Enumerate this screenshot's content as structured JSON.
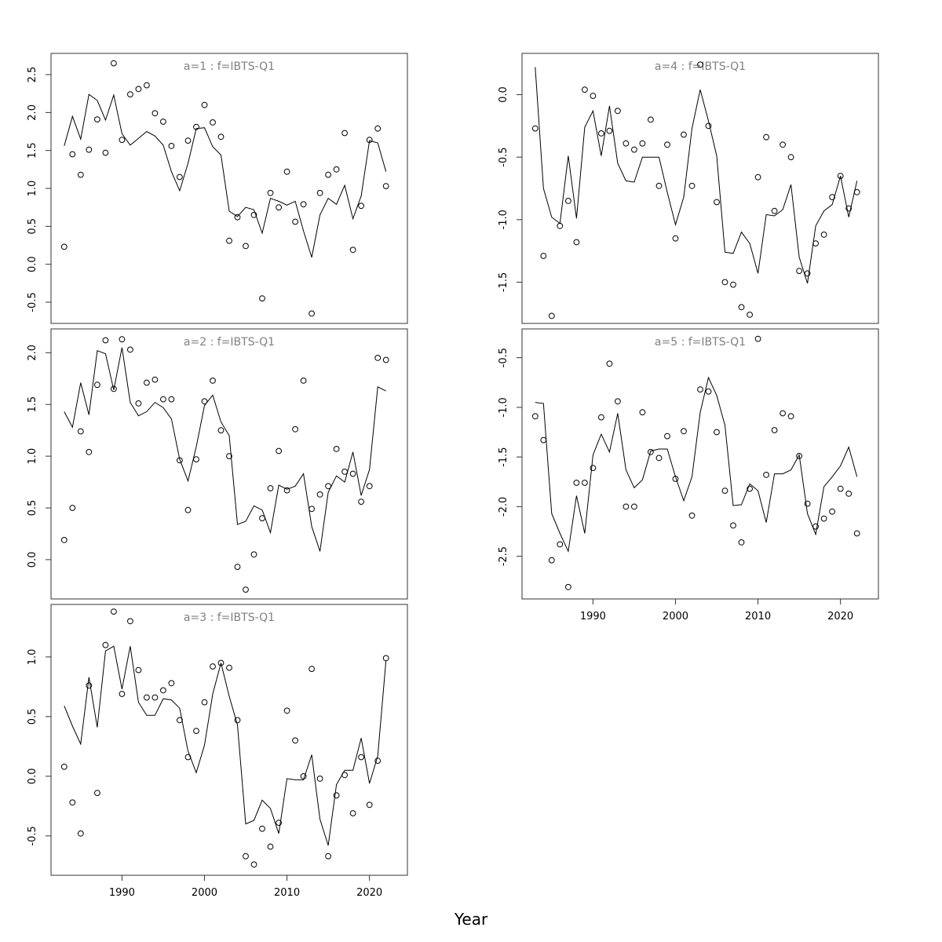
{
  "figure": {
    "xlabel": "Year"
  },
  "chart_data": [
    {
      "type": "scatter",
      "title": "a=1 : f=IBTS-Q1",
      "xlim": [
        1981.4,
        2024.6
      ],
      "ylim": [
        -0.78,
        2.78
      ],
      "xticks": [
        1990,
        2000,
        2010,
        2020
      ],
      "yticks": [
        -0.5,
        0.0,
        0.5,
        1.0,
        1.5,
        2.0,
        2.5
      ],
      "show_xticks": false,
      "x": [
        1983,
        1984,
        1985,
        1986,
        1987,
        1988,
        1989,
        1990,
        1991,
        1992,
        1993,
        1994,
        1995,
        1996,
        1997,
        1998,
        1999,
        2000,
        2001,
        2002,
        2003,
        2004,
        2005,
        2006,
        2007,
        2008,
        2009,
        2010,
        2011,
        2012,
        2013,
        2014,
        2015,
        2016,
        2017,
        2018,
        2019,
        2020,
        2021,
        2022
      ],
      "series": [
        {
          "kind": "points",
          "values": [
            0.23,
            1.45,
            1.18,
            1.51,
            1.91,
            1.47,
            2.65,
            1.64,
            2.24,
            2.31,
            2.36,
            1.99,
            1.88,
            1.56,
            1.15,
            1.63,
            1.81,
            2.1,
            1.87,
            1.68,
            0.31,
            0.62,
            0.24,
            0.65,
            -0.45,
            0.94,
            0.75,
            1.22,
            0.56,
            0.79,
            -0.65,
            0.94,
            1.18,
            1.25,
            1.73,
            0.19,
            0.77,
            1.64,
            1.79,
            1.03
          ]
        },
        {
          "kind": "line",
          "values": [
            1.56,
            1.95,
            1.65,
            2.24,
            2.16,
            1.9,
            2.23,
            1.72,
            1.57,
            1.66,
            1.75,
            1.69,
            1.57,
            1.22,
            0.97,
            1.33,
            1.79,
            1.8,
            1.55,
            1.44,
            0.7,
            0.63,
            0.75,
            0.72,
            0.41,
            0.87,
            0.83,
            0.78,
            0.83,
            0.44,
            0.09,
            0.65,
            0.87,
            0.79,
            1.04,
            0.6,
            0.9,
            1.63,
            1.6,
            1.22
          ]
        }
      ]
    },
    {
      "type": "scatter",
      "title": "a=2 : f=IBTS-Q1",
      "xlim": [
        1981.4,
        2024.6
      ],
      "ylim": [
        -0.38,
        2.23
      ],
      "xticks": [
        1990,
        2000,
        2010,
        2020
      ],
      "yticks": [
        0.0,
        0.5,
        1.0,
        1.5,
        2.0
      ],
      "show_xticks": false,
      "x": [
        1983,
        1984,
        1985,
        1986,
        1987,
        1988,
        1989,
        1990,
        1991,
        1992,
        1993,
        1994,
        1995,
        1996,
        1997,
        1998,
        1999,
        2000,
        2001,
        2002,
        2003,
        2004,
        2005,
        2006,
        2007,
        2008,
        2009,
        2010,
        2011,
        2012,
        2013,
        2014,
        2015,
        2016,
        2017,
        2018,
        2019,
        2020,
        2021,
        2022
      ],
      "series": [
        {
          "kind": "points",
          "values": [
            0.19,
            0.5,
            1.24,
            1.04,
            1.69,
            2.12,
            1.65,
            2.13,
            2.03,
            1.51,
            1.71,
            1.74,
            1.55,
            1.55,
            0.96,
            0.48,
            0.97,
            1.53,
            1.73,
            1.25,
            1.0,
            -0.07,
            -0.29,
            0.05,
            0.4,
            0.69,
            1.05,
            0.67,
            1.26,
            1.73,
            0.49,
            0.63,
            0.71,
            1.07,
            0.85,
            0.83,
            0.56,
            0.71,
            1.95,
            1.93
          ]
        },
        {
          "kind": "line",
          "values": [
            1.43,
            1.28,
            1.71,
            1.4,
            2.02,
            1.99,
            1.64,
            2.05,
            1.52,
            1.39,
            1.43,
            1.52,
            1.47,
            1.36,
            0.97,
            0.76,
            1.09,
            1.49,
            1.59,
            1.33,
            1.2,
            0.34,
            0.37,
            0.52,
            0.48,
            0.26,
            0.72,
            0.68,
            0.71,
            0.83,
            0.32,
            0.08,
            0.65,
            0.81,
            0.75,
            1.04,
            0.62,
            0.87,
            1.67,
            1.63
          ]
        }
      ]
    },
    {
      "type": "scatter",
      "title": "a=3 : f=IBTS-Q1",
      "xlim": [
        1981.4,
        2024.6
      ],
      "ylim": [
        -0.83,
        1.44
      ],
      "xticks": [
        1990,
        2000,
        2010,
        2020
      ],
      "yticks": [
        -0.5,
        0.0,
        0.5,
        1.0
      ],
      "show_xticks": true,
      "x": [
        1983,
        1984,
        1985,
        1986,
        1987,
        1988,
        1989,
        1990,
        1991,
        1992,
        1993,
        1994,
        1995,
        1996,
        1997,
        1998,
        1999,
        2000,
        2001,
        2002,
        2003,
        2004,
        2005,
        2006,
        2007,
        2008,
        2009,
        2010,
        2011,
        2012,
        2013,
        2014,
        2015,
        2016,
        2017,
        2018,
        2019,
        2020,
        2021,
        2022
      ],
      "series": [
        {
          "kind": "points",
          "values": [
            0.08,
            -0.22,
            -0.48,
            0.76,
            -0.14,
            1.1,
            1.38,
            0.69,
            1.3,
            0.89,
            0.66,
            0.66,
            0.72,
            0.78,
            0.47,
            0.16,
            0.38,
            0.62,
            0.92,
            0.95,
            0.91,
            0.47,
            -0.67,
            -0.74,
            -0.44,
            -0.59,
            -0.39,
            0.55,
            0.3,
            0.0,
            0.9,
            -0.02,
            -0.67,
            -0.16,
            0.01,
            -0.31,
            0.16,
            -0.24,
            0.13,
            0.99
          ]
        },
        {
          "kind": "line",
          "values": [
            0.59,
            0.42,
            0.27,
            0.83,
            0.41,
            1.05,
            1.09,
            0.73,
            1.09,
            0.62,
            0.51,
            0.51,
            0.65,
            0.64,
            0.57,
            0.21,
            0.03,
            0.26,
            0.69,
            0.95,
            0.67,
            0.43,
            -0.4,
            -0.37,
            -0.2,
            -0.27,
            -0.48,
            -0.02,
            -0.03,
            -0.03,
            0.18,
            -0.36,
            -0.58,
            -0.07,
            0.05,
            0.05,
            0.32,
            -0.06,
            0.17,
            0.97
          ]
        }
      ]
    },
    {
      "type": "scatter",
      "title": "a=4 : f=IBTS-Q1",
      "xlim": [
        1981.4,
        2024.6
      ],
      "ylim": [
        -1.83,
        0.33
      ],
      "xticks": [
        1990,
        2000,
        2010,
        2020
      ],
      "yticks": [
        -1.5,
        -1.0,
        -0.5,
        0.0
      ],
      "show_xticks": false,
      "x": [
        1983,
        1984,
        1985,
        1986,
        1987,
        1988,
        1989,
        1990,
        1991,
        1992,
        1993,
        1994,
        1995,
        1996,
        1997,
        1998,
        1999,
        2000,
        2001,
        2002,
        2003,
        2004,
        2005,
        2006,
        2007,
        2008,
        2009,
        2010,
        2011,
        2012,
        2013,
        2014,
        2015,
        2016,
        2017,
        2018,
        2019,
        2020,
        2021,
        2022
      ],
      "series": [
        {
          "kind": "points",
          "values": [
            -0.27,
            -1.29,
            -1.77,
            -1.05,
            -0.85,
            -1.18,
            0.04,
            -0.01,
            -0.31,
            -0.29,
            -0.13,
            -0.39,
            -0.44,
            -0.39,
            -0.2,
            -0.73,
            -0.4,
            -1.15,
            -0.32,
            -0.73,
            0.24,
            -0.25,
            -0.86,
            -1.5,
            -1.52,
            -1.7,
            -1.76,
            -0.66,
            -0.34,
            -0.93,
            -0.4,
            -0.5,
            -1.41,
            -1.43,
            -1.19,
            -1.12,
            -0.82,
            -0.65,
            -0.91,
            -0.78
          ]
        },
        {
          "kind": "line",
          "values": [
            0.22,
            -0.75,
            -0.98,
            -1.03,
            -0.49,
            -0.99,
            -0.26,
            -0.13,
            -0.49,
            -0.09,
            -0.55,
            -0.69,
            -0.7,
            -0.5,
            -0.5,
            -0.5,
            -0.78,
            -1.04,
            -0.82,
            -0.27,
            0.04,
            -0.21,
            -0.49,
            -1.26,
            -1.27,
            -1.1,
            -1.19,
            -1.43,
            -0.96,
            -0.97,
            -0.92,
            -0.72,
            -1.3,
            -1.51,
            -1.05,
            -0.93,
            -0.88,
            -0.65,
            -0.98,
            -0.69
          ]
        }
      ]
    },
    {
      "type": "scatter",
      "title": "a=5 : f=IBTS-Q1",
      "xlim": [
        1981.4,
        2024.6
      ],
      "ylim": [
        -2.93,
        -0.21
      ],
      "xticks": [
        1990,
        2000,
        2010,
        2020
      ],
      "yticks": [
        -2.5,
        -2.0,
        -1.5,
        -1.0,
        -0.5
      ],
      "show_xticks": true,
      "x": [
        1983,
        1984,
        1985,
        1986,
        1987,
        1988,
        1989,
        1990,
        1991,
        1992,
        1993,
        1994,
        1995,
        1996,
        1997,
        1998,
        1999,
        2000,
        2001,
        2002,
        2003,
        2004,
        2005,
        2006,
        2007,
        2008,
        2009,
        2010,
        2011,
        2012,
        2013,
        2014,
        2015,
        2016,
        2017,
        2018,
        2019,
        2020,
        2021,
        2022
      ],
      "series": [
        {
          "kind": "points",
          "values": [
            -1.09,
            -1.33,
            -2.54,
            -2.38,
            -2.81,
            -1.76,
            -1.76,
            -1.61,
            -1.1,
            -0.56,
            -0.94,
            -2.0,
            -2.0,
            -1.05,
            -1.45,
            -1.51,
            -1.29,
            -1.72,
            -1.24,
            -2.09,
            -0.82,
            -0.84,
            -1.25,
            -1.84,
            -2.19,
            -2.36,
            -1.82,
            -0.31,
            -1.68,
            -1.23,
            -1.06,
            -1.09,
            -1.49,
            -1.97,
            -2.2,
            -2.12,
            -2.05,
            -1.82,
            -1.87,
            -2.27
          ]
        },
        {
          "kind": "line",
          "values": [
            -0.95,
            -0.96,
            -2.07,
            -2.27,
            -2.45,
            -1.89,
            -2.27,
            -1.48,
            -1.27,
            -1.45,
            -1.06,
            -1.63,
            -1.81,
            -1.73,
            -1.44,
            -1.42,
            -1.42,
            -1.7,
            -1.94,
            -1.7,
            -1.05,
            -0.7,
            -0.88,
            -1.18,
            -1.99,
            -1.98,
            -1.77,
            -1.84,
            -2.16,
            -1.67,
            -1.67,
            -1.63,
            -1.48,
            -2.07,
            -2.28,
            -1.8,
            -1.7,
            -1.59,
            -1.4,
            -1.7
          ]
        }
      ]
    }
  ]
}
